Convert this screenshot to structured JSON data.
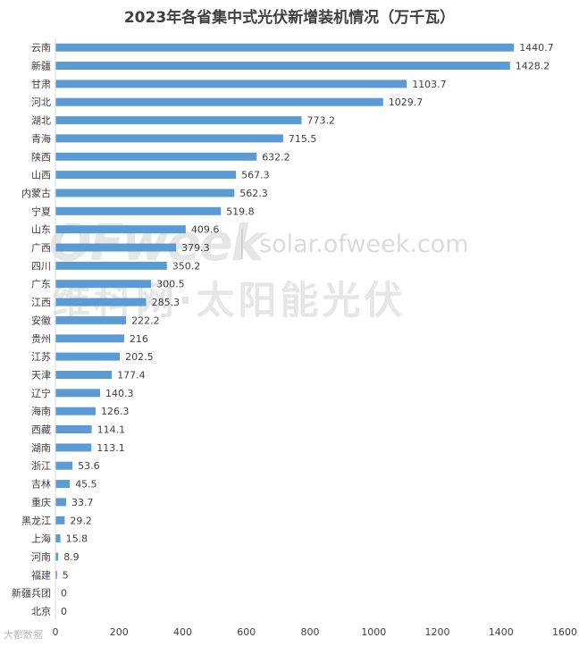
{
  "chart_data": {
    "type": "bar",
    "orientation": "horizontal",
    "title": "2023年各省集中式光伏新增装机情况（万千瓦）",
    "categories": [
      "云南",
      "新疆",
      "甘肃",
      "河北",
      "湖北",
      "青海",
      "陕西",
      "山西",
      "内蒙古",
      "宁夏",
      "山东",
      "广西",
      "四川",
      "广东",
      "江西",
      "安徽",
      "贵州",
      "江苏",
      "天津",
      "辽宁",
      "海南",
      "西藏",
      "湖南",
      "浙江",
      "吉林",
      "重庆",
      "黑龙江",
      "上海",
      "河南",
      "福建",
      "新疆兵团",
      "北京"
    ],
    "values": [
      1440.7,
      1428.2,
      1103.7,
      1029.7,
      773.2,
      715.5,
      632.2,
      567.3,
      562.3,
      519.8,
      409.6,
      379.3,
      350.2,
      300.5,
      285.3,
      222.2,
      216,
      202.5,
      177.4,
      140.3,
      126.3,
      114.1,
      113.1,
      53.6,
      45.5,
      33.7,
      29.2,
      15.8,
      8.9,
      5,
      0,
      0
    ],
    "value_labels": [
      "1440.7",
      "1428.2",
      "1103.7",
      "1029.7",
      "773.2",
      "715.5",
      "632.2",
      "567.3",
      "562.3",
      "519.8",
      "409.6",
      "379.3",
      "350.2",
      "300.5",
      "285.3",
      "222.2",
      "216",
      "202.5",
      "177.4",
      "140.3",
      "126.3",
      "114.1",
      "113.1",
      "53.6",
      "45.5",
      "33.7",
      "29.2",
      "15.8",
      "8.9",
      "5",
      "0",
      "0"
    ],
    "xlim": [
      0,
      1600
    ],
    "xticks": [
      "0",
      "200",
      "400",
      "600",
      "800",
      "1000",
      "1200",
      "1400",
      "1600"
    ],
    "bar_color": "#5B9BD5",
    "grid": false
  },
  "watermark": {
    "logo": "OFweek",
    "url": "solar.ofweek.com",
    "subtitle": "维科网·太阳能光伏",
    "badge": "大都数据"
  }
}
